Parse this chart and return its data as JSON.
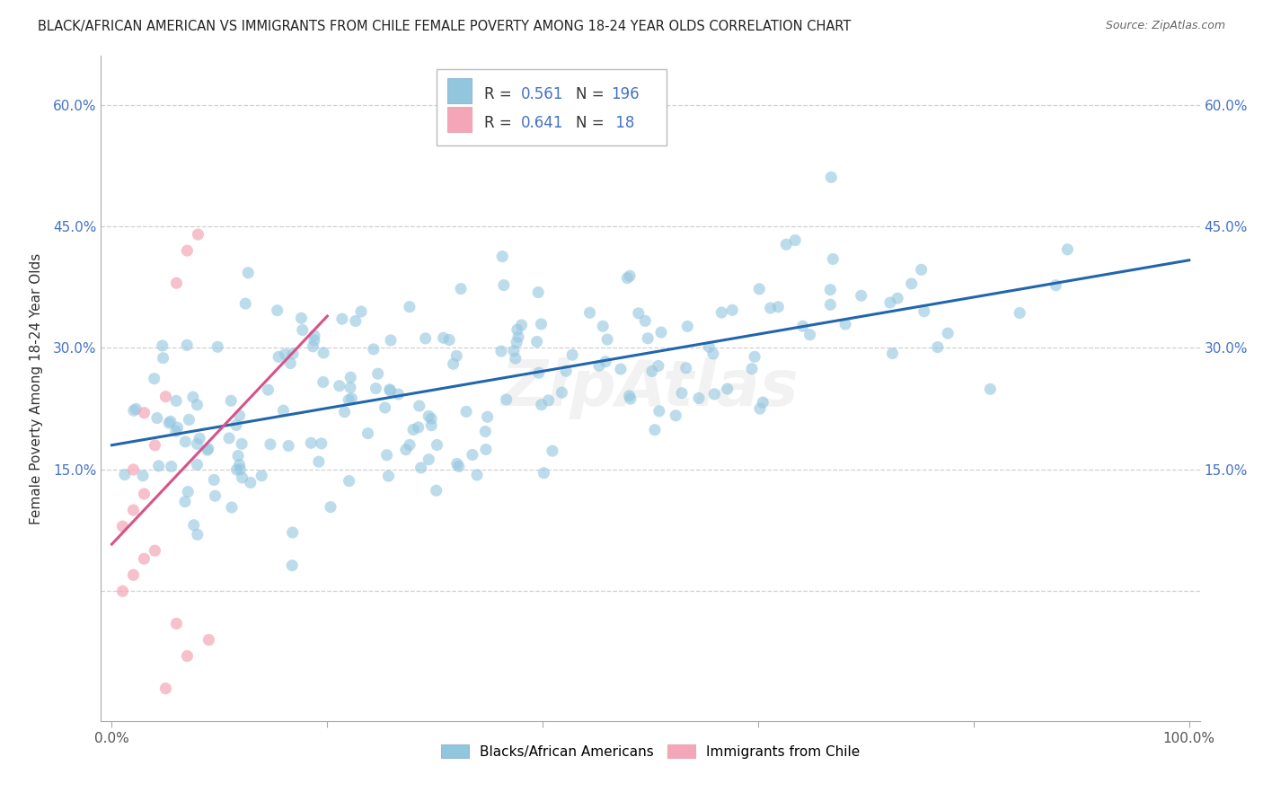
{
  "title": "BLACK/AFRICAN AMERICAN VS IMMIGRANTS FROM CHILE FEMALE POVERTY AMONG 18-24 YEAR OLDS CORRELATION CHART",
  "source": "Source: ZipAtlas.com",
  "ylabel": "Female Poverty Among 18-24 Year Olds",
  "blue_color": "#92c5de",
  "blue_line_color": "#2166ac",
  "pink_color": "#f4a6b8",
  "pink_line_color": "#d6538a",
  "R_blue": 0.561,
  "N_blue": 196,
  "R_pink": 0.641,
  "N_pink": 18,
  "legend_blue_label": "Blacks/African Americans",
  "legend_pink_label": "Immigrants from Chile",
  "watermark": "ZipAtlas",
  "background_color": "#ffffff",
  "grid_color": "#d0d0d0",
  "title_color": "#222222",
  "blue_label_color": "#4472c4",
  "text_color": "#333333"
}
